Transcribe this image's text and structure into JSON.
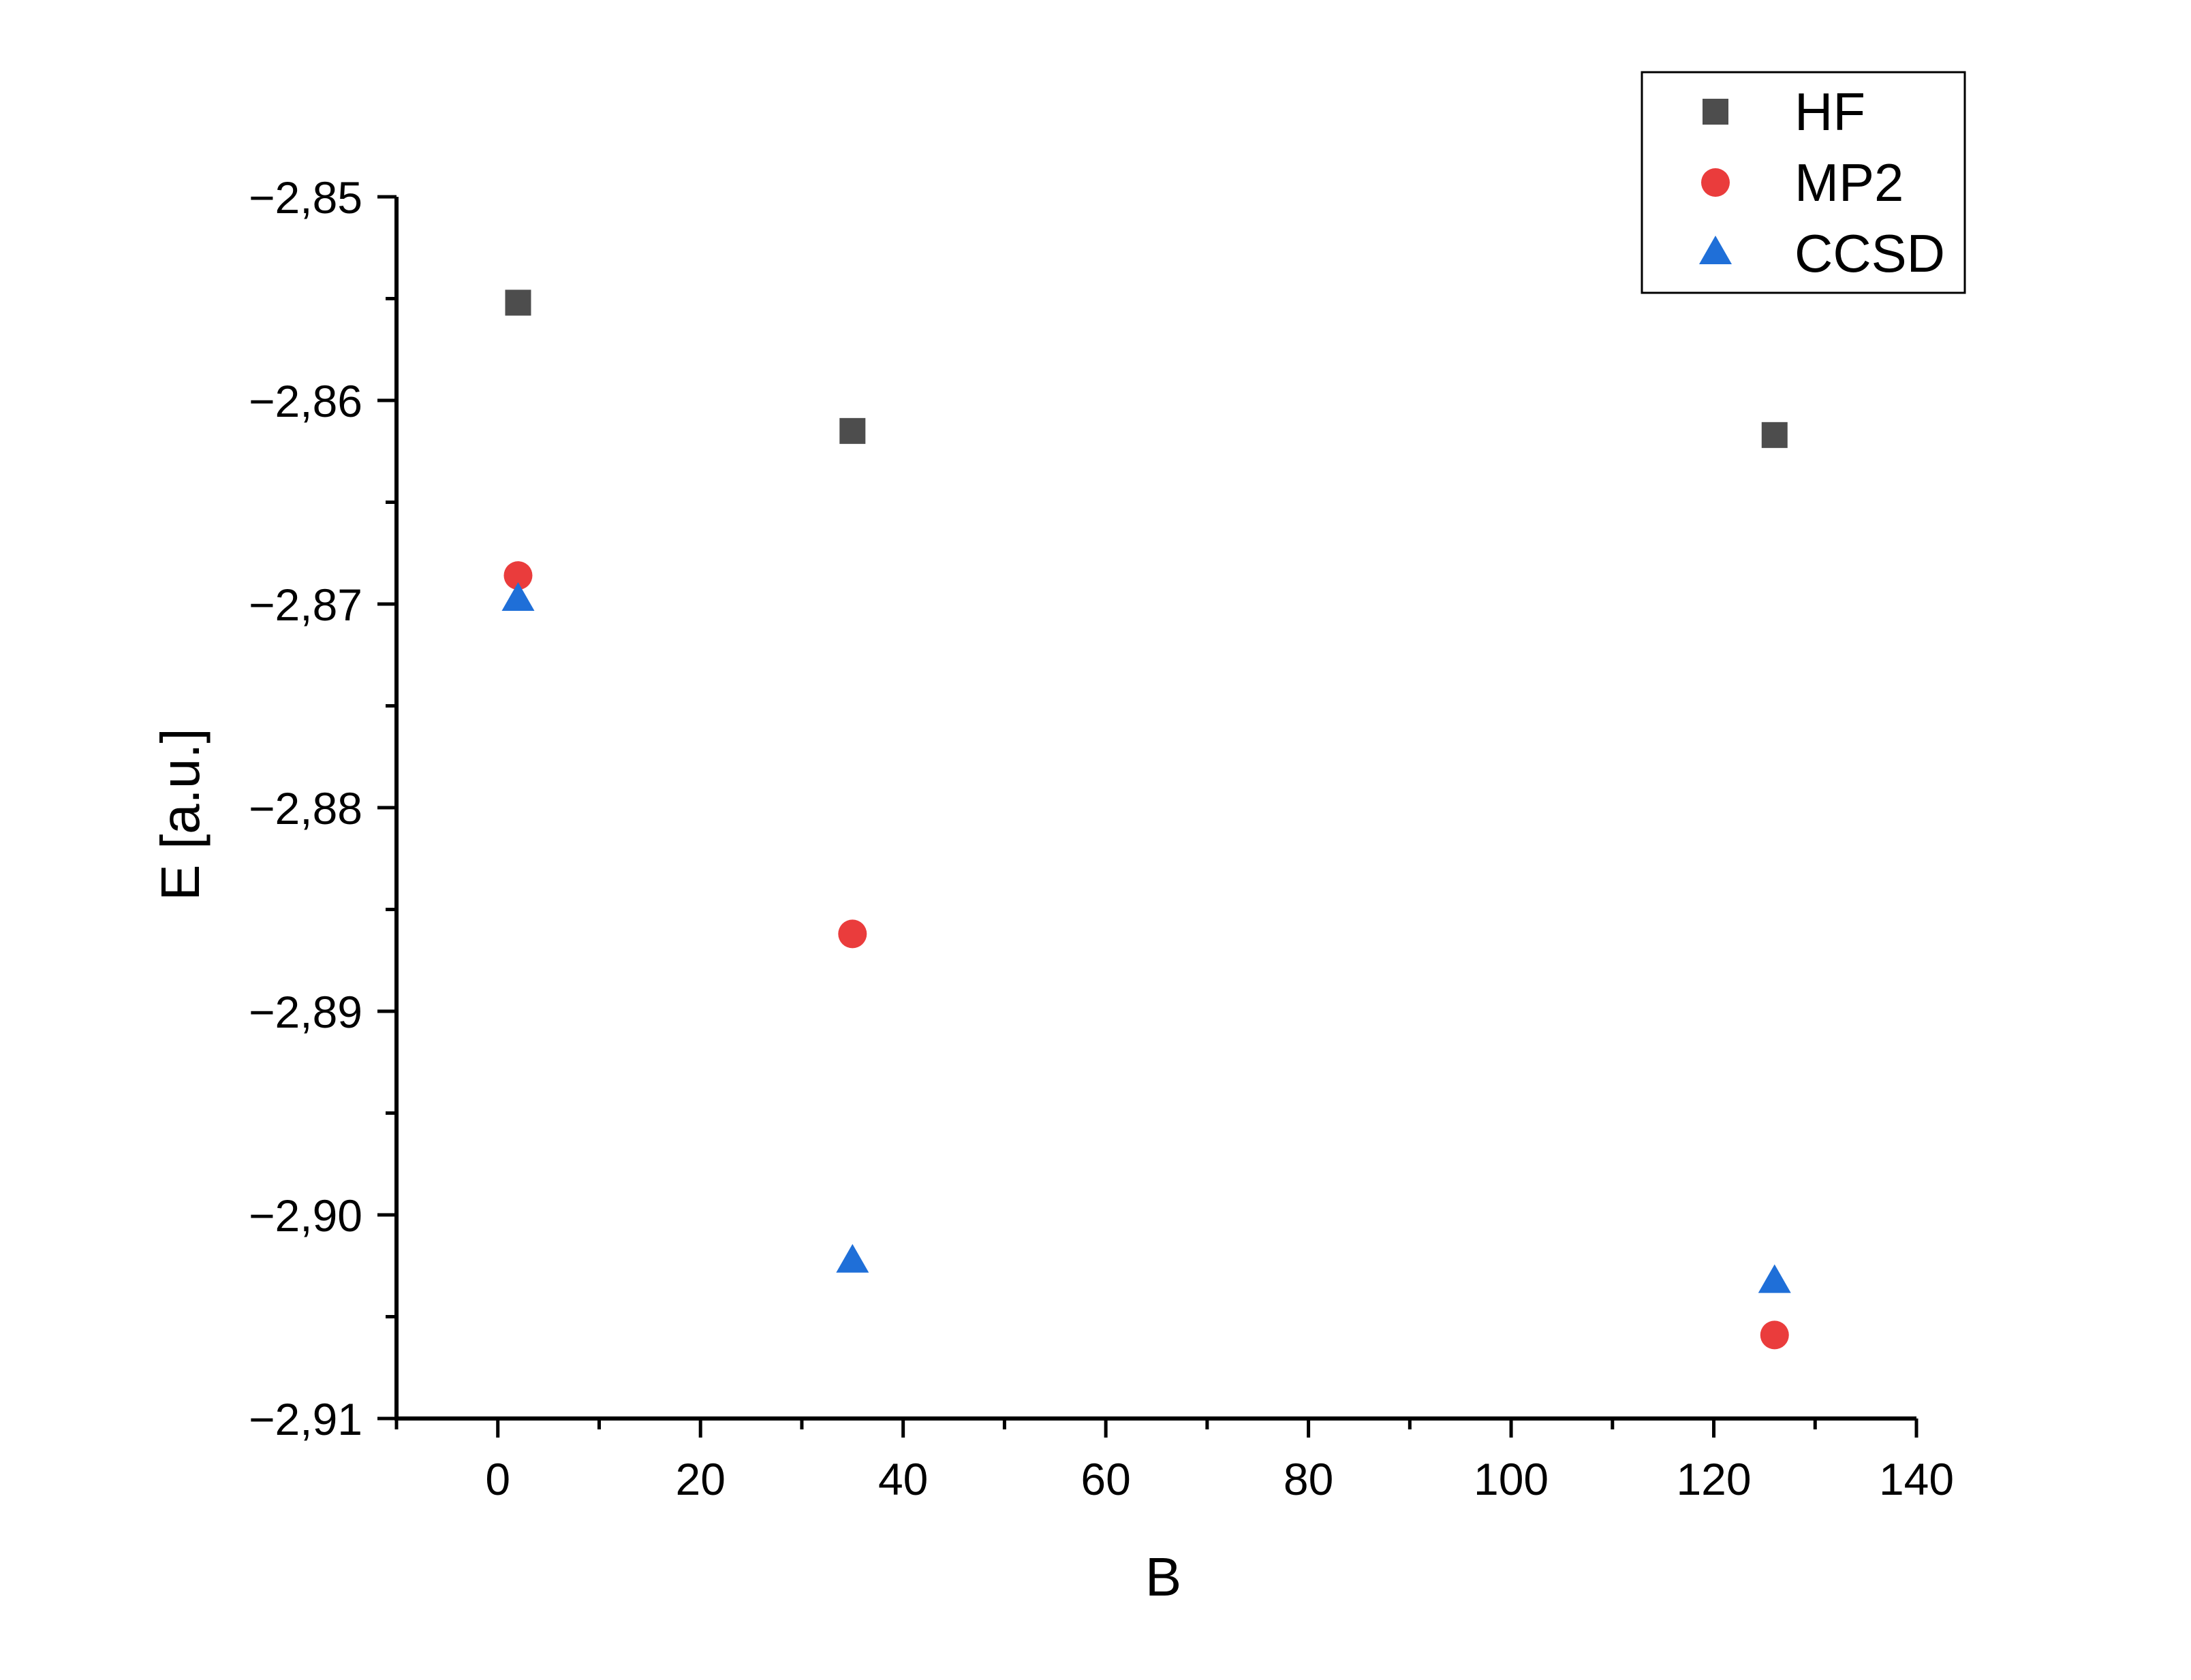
{
  "chart_data": {
    "type": "scatter",
    "title": "",
    "xlabel": "B",
    "ylabel": "E [a.u.]",
    "xlim": [
      -10,
      140
    ],
    "ylim": [
      -2.91,
      -2.85
    ],
    "x_ticks": [
      0,
      20,
      40,
      60,
      80,
      100,
      120,
      140
    ],
    "x_tick_labels": [
      "0",
      "20",
      "40",
      "60",
      "80",
      "100",
      "120",
      "140"
    ],
    "y_ticks": [
      -2.85,
      -2.86,
      -2.87,
      -2.88,
      -2.89,
      -2.9,
      -2.91
    ],
    "y_tick_labels": [
      "−2,85",
      "−2,86",
      "−2,87",
      "−2,88",
      "−2,89",
      "−2,90",
      "−2,91"
    ],
    "grid": false,
    "legend_position": "top-right",
    "series": [
      {
        "name": "HF",
        "marker": "square",
        "color": "#4d4d4d",
        "points": [
          {
            "x": 2,
            "y": -2.8552
          },
          {
            "x": 35,
            "y": -2.8615
          },
          {
            "x": 126,
            "y": -2.8617
          }
        ]
      },
      {
        "name": "MP2",
        "marker": "circle",
        "color": "#ea3c3c",
        "points": [
          {
            "x": 2,
            "y": -2.8686
          },
          {
            "x": 35,
            "y": -2.8862
          },
          {
            "x": 126,
            "y": -2.9059
          }
        ]
      },
      {
        "name": "CCSD",
        "marker": "triangle",
        "color": "#1f6fd8",
        "points": [
          {
            "x": 2,
            "y": -2.8698
          },
          {
            "x": 35,
            "y": -2.9023
          },
          {
            "x": 126,
            "y": -2.9033
          }
        ]
      }
    ]
  }
}
